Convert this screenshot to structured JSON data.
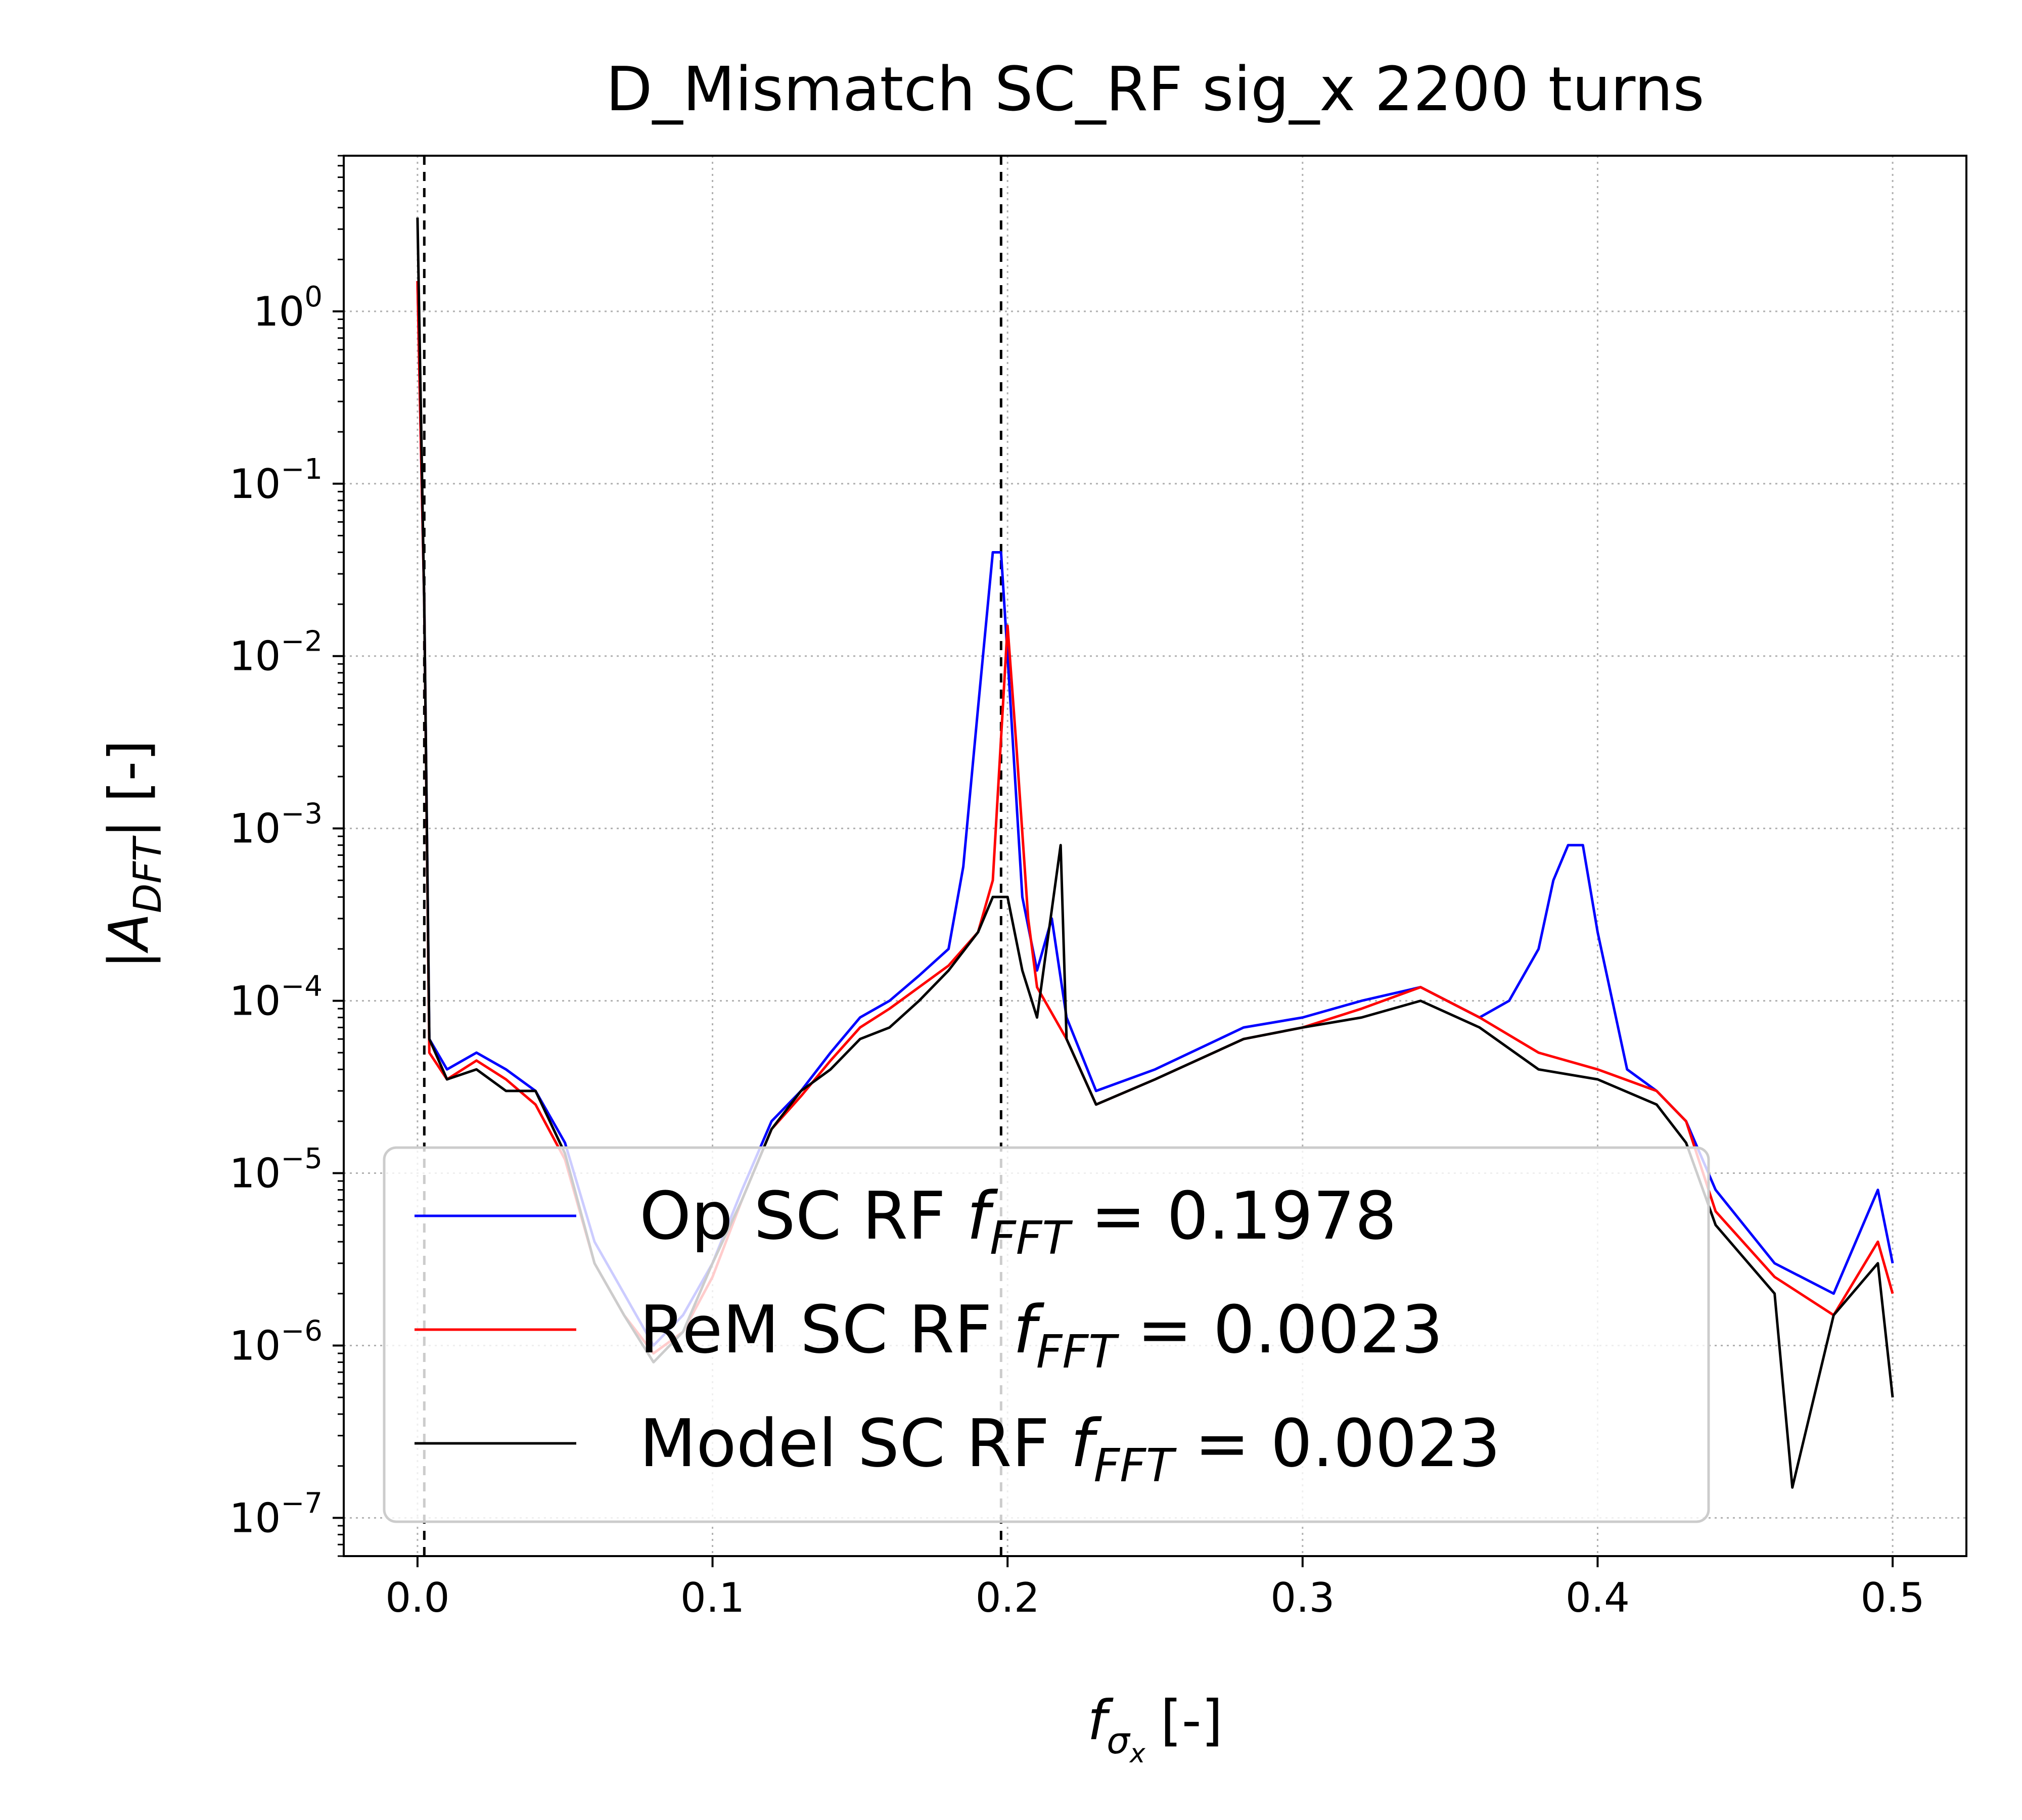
{
  "chart_data": {
    "type": "line",
    "title": "D_Mismatch SC_RF sig_x 2200 turns",
    "xlabel": {
      "main": "f",
      "sub": "σ",
      "subsub": "x",
      "unit": "[-]"
    },
    "ylabel": {
      "pre": "|A",
      "sub": "DFT",
      "post": "| [-]"
    },
    "yscale": "log",
    "xlim": [
      -0.025,
      0.525
    ],
    "ylim": [
      6e-08,
      8
    ],
    "grid": true,
    "legend_position": "lower center",
    "x_ticks": [
      0.0,
      0.1,
      0.2,
      0.3,
      0.4,
      0.5
    ],
    "x_tick_labels": [
      "0.0",
      "0.1",
      "0.2",
      "0.3",
      "0.4",
      "0.5"
    ],
    "y_ticks": [
      1e-07,
      1e-06,
      1e-05,
      0.0001,
      0.001,
      0.01,
      0.1,
      1
    ],
    "y_tick_labels": [
      {
        "base": "10",
        "exp": "−7"
      },
      {
        "base": "10",
        "exp": "−6"
      },
      {
        "base": "10",
        "exp": "−5"
      },
      {
        "base": "10",
        "exp": "−4"
      },
      {
        "base": "10",
        "exp": "−3"
      },
      {
        "base": "10",
        "exp": "−2"
      },
      {
        "base": "10",
        "exp": "−1"
      },
      {
        "base": "10",
        "exp": "0"
      }
    ],
    "vlines": [
      {
        "x": 0.0023,
        "color": "#000000",
        "style": "dashed"
      },
      {
        "x": 0.1978,
        "color": "#000000",
        "style": "dashed"
      }
    ],
    "series": [
      {
        "name_pre": "Op SC RF ",
        "name_f": "f",
        "name_sub": "FFT",
        "name_post": " =  0.1978",
        "color": "#0000ff",
        "points": [
          [
            0.0,
            1.5
          ],
          [
            0.0023,
            0.02
          ],
          [
            0.004,
            6e-05
          ],
          [
            0.01,
            4e-05
          ],
          [
            0.02,
            5e-05
          ],
          [
            0.03,
            4e-05
          ],
          [
            0.04,
            3e-05
          ],
          [
            0.05,
            1.5e-05
          ],
          [
            0.06,
            4e-06
          ],
          [
            0.07,
            2e-06
          ],
          [
            0.08,
            1e-06
          ],
          [
            0.09,
            1.5e-06
          ],
          [
            0.1,
            3e-06
          ],
          [
            0.11,
            8e-06
          ],
          [
            0.12,
            2e-05
          ],
          [
            0.13,
            3e-05
          ],
          [
            0.14,
            5e-05
          ],
          [
            0.15,
            8e-05
          ],
          [
            0.16,
            0.0001
          ],
          [
            0.17,
            0.00014
          ],
          [
            0.18,
            0.0002
          ],
          [
            0.185,
            0.0006
          ],
          [
            0.19,
            0.005
          ],
          [
            0.195,
            0.04
          ],
          [
            0.1978,
            0.04
          ],
          [
            0.2,
            0.01
          ],
          [
            0.205,
            0.0004
          ],
          [
            0.21,
            0.00015
          ],
          [
            0.215,
            0.0003
          ],
          [
            0.22,
            8e-05
          ],
          [
            0.23,
            3e-05
          ],
          [
            0.25,
            4e-05
          ],
          [
            0.28,
            7e-05
          ],
          [
            0.3,
            8e-05
          ],
          [
            0.32,
            0.0001
          ],
          [
            0.34,
            0.00012
          ],
          [
            0.36,
            8e-05
          ],
          [
            0.37,
            0.0001
          ],
          [
            0.38,
            0.0002
          ],
          [
            0.385,
            0.0005
          ],
          [
            0.39,
            0.0008
          ],
          [
            0.395,
            0.0008
          ],
          [
            0.4,
            0.00025
          ],
          [
            0.41,
            4e-05
          ],
          [
            0.42,
            3e-05
          ],
          [
            0.43,
            2e-05
          ],
          [
            0.44,
            8e-06
          ],
          [
            0.46,
            3e-06
          ],
          [
            0.48,
            2e-06
          ],
          [
            0.495,
            8e-06
          ],
          [
            0.5,
            3e-06
          ]
        ]
      },
      {
        "name_pre": "ReM SC RF ",
        "name_f": "f",
        "name_sub": "FFT",
        "name_post": " =  0.0023",
        "color": "#ff0000",
        "points": [
          [
            0.0,
            1.5
          ],
          [
            0.0023,
            0.02
          ],
          [
            0.004,
            5e-05
          ],
          [
            0.01,
            3.5e-05
          ],
          [
            0.02,
            4.5e-05
          ],
          [
            0.03,
            3.5e-05
          ],
          [
            0.04,
            2.5e-05
          ],
          [
            0.05,
            1.2e-05
          ],
          [
            0.06,
            3e-06
          ],
          [
            0.07,
            1.5e-06
          ],
          [
            0.08,
            9e-07
          ],
          [
            0.09,
            1.2e-06
          ],
          [
            0.1,
            2.5e-06
          ],
          [
            0.11,
            7e-06
          ],
          [
            0.12,
            1.8e-05
          ],
          [
            0.13,
            2.8e-05
          ],
          [
            0.14,
            4.5e-05
          ],
          [
            0.15,
            7e-05
          ],
          [
            0.16,
            9e-05
          ],
          [
            0.17,
            0.00012
          ],
          [
            0.18,
            0.00016
          ],
          [
            0.19,
            0.00025
          ],
          [
            0.195,
            0.0005
          ],
          [
            0.2,
            0.015
          ],
          [
            0.203,
            0.003
          ],
          [
            0.207,
            0.0003
          ],
          [
            0.21,
            0.00012
          ],
          [
            0.22,
            6e-05
          ],
          [
            0.23,
            2.5e-05
          ],
          [
            0.25,
            3.5e-05
          ],
          [
            0.28,
            6e-05
          ],
          [
            0.3,
            7e-05
          ],
          [
            0.32,
            9e-05
          ],
          [
            0.34,
            0.00012
          ],
          [
            0.36,
            8e-05
          ],
          [
            0.38,
            5e-05
          ],
          [
            0.4,
            4e-05
          ],
          [
            0.42,
            3e-05
          ],
          [
            0.43,
            2e-05
          ],
          [
            0.44,
            6e-06
          ],
          [
            0.46,
            2.5e-06
          ],
          [
            0.48,
            1.5e-06
          ],
          [
            0.495,
            4e-06
          ],
          [
            0.5,
            2e-06
          ]
        ]
      },
      {
        "name_pre": "Model SC RF ",
        "name_f": "f",
        "name_sub": "FFT",
        "name_post": " =  0.0023",
        "color": "#000000",
        "points": [
          [
            0.0,
            3.5
          ],
          [
            0.0023,
            0.02
          ],
          [
            0.004,
            6e-05
          ],
          [
            0.01,
            3.5e-05
          ],
          [
            0.02,
            4e-05
          ],
          [
            0.03,
            3e-05
          ],
          [
            0.04,
            3e-05
          ],
          [
            0.05,
            1.3e-05
          ],
          [
            0.06,
            3e-06
          ],
          [
            0.07,
            1.5e-06
          ],
          [
            0.08,
            8e-07
          ],
          [
            0.09,
            1.2e-06
          ],
          [
            0.1,
            3e-06
          ],
          [
            0.11,
            7e-06
          ],
          [
            0.12,
            1.8e-05
          ],
          [
            0.13,
            3e-05
          ],
          [
            0.14,
            4e-05
          ],
          [
            0.15,
            6e-05
          ],
          [
            0.16,
            7e-05
          ],
          [
            0.17,
            0.0001
          ],
          [
            0.18,
            0.00015
          ],
          [
            0.19,
            0.00025
          ],
          [
            0.195,
            0.0004
          ],
          [
            0.2,
            0.0004
          ],
          [
            0.205,
            0.00015
          ],
          [
            0.21,
            8e-05
          ],
          [
            0.218,
            0.0008
          ],
          [
            0.22,
            6e-05
          ],
          [
            0.23,
            2.5e-05
          ],
          [
            0.25,
            3.5e-05
          ],
          [
            0.28,
            6e-05
          ],
          [
            0.3,
            7e-05
          ],
          [
            0.32,
            8e-05
          ],
          [
            0.34,
            0.0001
          ],
          [
            0.36,
            7e-05
          ],
          [
            0.38,
            4e-05
          ],
          [
            0.4,
            3.5e-05
          ],
          [
            0.42,
            2.5e-05
          ],
          [
            0.43,
            1.5e-05
          ],
          [
            0.44,
            5e-06
          ],
          [
            0.46,
            2e-06
          ],
          [
            0.466,
            1.5e-07
          ],
          [
            0.48,
            1.5e-06
          ],
          [
            0.495,
            3e-06
          ],
          [
            0.5,
            5e-07
          ]
        ]
      }
    ]
  }
}
